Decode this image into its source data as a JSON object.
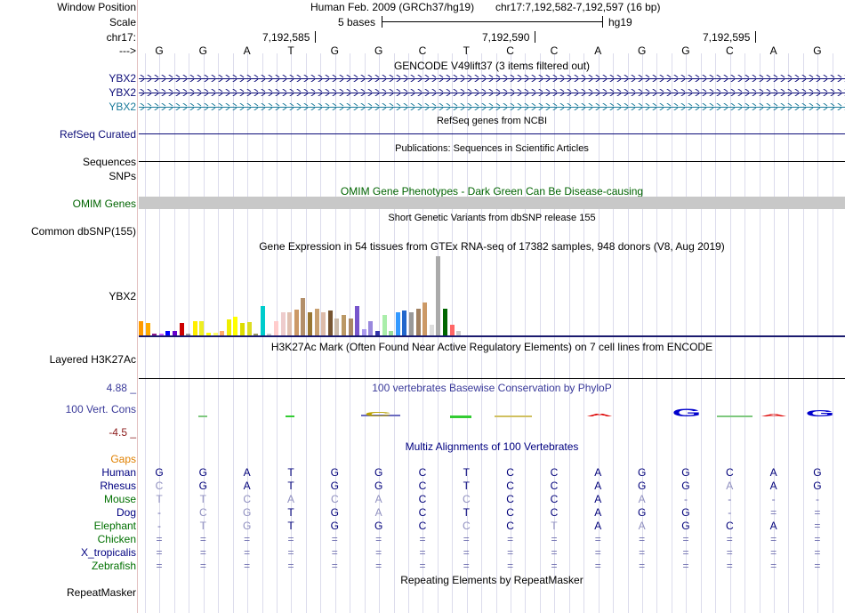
{
  "labels": {
    "window_position": "Window Position",
    "scale": "Scale",
    "chrom": "chr17:",
    "strand_arrow": "--->",
    "ybx2_1": "YBX2",
    "ybx2_2": "YBX2",
    "ybx2_3": "YBX2",
    "refseq": "RefSeq Curated",
    "sequences": "Sequences",
    "snps": "SNPs",
    "omim": "OMIM Genes",
    "common_dbsnp": "Common dbSNP(155)",
    "gtex_gene": "YBX2",
    "h3k27ac": "Layered H3K27Ac",
    "vert_cons": "100 Vert. Cons",
    "cons_max": "4.88 _",
    "cons_min": "-4.5 _",
    "gaps": "Gaps",
    "repeatmasker": "RepeatMasker"
  },
  "header": {
    "assembly": "Human Feb. 2009 (GRCh37/hg19)",
    "position": "chr17:7,192,582-7,192,597 (16 bp)",
    "scale_text": "5 bases",
    "scale_db": "hg19",
    "coord_1": "7,192,585",
    "coord_2": "7,192,590",
    "coord_3": "7,192,595"
  },
  "bases": [
    "G",
    "G",
    "A",
    "T",
    "G",
    "G",
    "C",
    "T",
    "C",
    "C",
    "A",
    "G",
    "G",
    "C",
    "A",
    "G"
  ],
  "track_titles": {
    "gencode": "GENCODE V49lift37 (3 items filtered out)",
    "refseq": "RefSeq genes from NCBI",
    "publications": "Publications: Sequences in Scientific Articles",
    "omim": "OMIM Gene Phenotypes - Dark Green Can Be Disease-causing",
    "dbsnp": "Short Genetic Variants from dbSNP release 155",
    "gtex": "Gene Expression in 54 tissues from GTEx RNA-seq of 17382 samples, 948 donors (V8, Aug 2019)",
    "h3k27ac": "H3K27Ac Mark (Often Found Near Active Regulatory Elements) on 7 cell lines from ENCODE",
    "phylop": "100 vertebrates Basewise Conservation by PhyloP",
    "multiz": "Multiz Alignments of 100 Vertebrates",
    "repeatmasker": "Repeating Elements by RepeatMasker"
  },
  "colors": {
    "gencode_dark": "#0c0c78",
    "gencode_light": "#1a7a9a",
    "omim_bar": "#c8c8c8",
    "omim_title": "#006400",
    "phylop_title": "#3a3a9a",
    "gaps": "#e08000",
    "green_species": "#007000",
    "blue_species": "#000080"
  },
  "gtex_values": [
    14,
    12,
    2,
    2,
    4,
    4,
    12,
    2,
    14,
    14,
    3,
    3,
    4,
    15,
    18,
    12,
    13,
    2,
    28,
    2,
    14,
    22,
    22,
    25,
    36,
    22,
    26,
    22,
    24,
    16,
    20,
    16,
    28,
    6,
    14,
    4,
    20,
    4,
    22,
    24,
    22,
    26,
    32,
    10,
    76,
    26,
    10,
    4
  ],
  "gtex_colors": [
    "#ff9900",
    "#ffaa00",
    "#8b1a8b",
    "#cc66ff",
    "#0000ff",
    "#6600cc",
    "#cc0000",
    "#999999",
    "#ffee00",
    "#eeee22",
    "#ffff00",
    "#ffff66",
    "#ffaa66",
    "#eeee00",
    "#ffff00",
    "#dddd00",
    "#dddd22",
    "#999966",
    "#00cccc",
    "#cccccc",
    "#ffcccc",
    "#eecccc",
    "#e0c0b0",
    "#cc9966",
    "#b38f6a",
    "#997733",
    "#c8a070",
    "#ddbbaa",
    "#775533",
    "#ccbbaa",
    "#bb9966",
    "#aa8866",
    "#7755cc",
    "#aa99ee",
    "#9988dd",
    "#3333aa",
    "#aaeeaa",
    "#99dd99",
    "#3399ff",
    "#2266cc",
    "#999999",
    "#a08060",
    "#cc9966",
    "#dddddd",
    "#aaaaaa",
    "#006600",
    "#ff6666",
    "#cccccc"
  ],
  "phylop_letters": [
    {
      "base": "C",
      "value": 2.1,
      "color": "#b8a000"
    },
    {
      "base": "A",
      "value": 1.2,
      "color": "#dd0000"
    },
    {
      "base": "G",
      "value": 3.4,
      "color": "#0000cc"
    },
    {
      "base": "A",
      "value": 1.1,
      "color": "#dd0000"
    },
    {
      "base": "G",
      "value": 2.9,
      "color": "#0000cc"
    }
  ],
  "species": [
    {
      "name": "Human",
      "color": "#000080",
      "bases": [
        "G",
        "G",
        "A",
        "T",
        "G",
        "G",
        "C",
        "T",
        "C",
        "C",
        "A",
        "G",
        "G",
        "C",
        "A",
        "G"
      ]
    },
    {
      "name": "Rhesus",
      "color": "#000080",
      "bases": [
        "C",
        "G",
        "A",
        "T",
        "G",
        "G",
        "C",
        "T",
        "C",
        "C",
        "A",
        "G",
        "G",
        "A",
        "A",
        "G"
      ]
    },
    {
      "name": "Mouse",
      "color": "#007000",
      "bases": [
        "T",
        "T",
        "C",
        "A",
        "C",
        "A",
        "C",
        "C",
        "C",
        "C",
        "A",
        "A",
        "-",
        "-",
        "-",
        "-"
      ]
    },
    {
      "name": "Dog",
      "color": "#000080",
      "bases": [
        "-",
        "C",
        "G",
        "T",
        "G",
        "A",
        "C",
        "T",
        "C",
        "C",
        "A",
        "G",
        "G",
        "-",
        "=",
        "="
      ]
    },
    {
      "name": "Elephant",
      "color": "#007000",
      "bases": [
        "-",
        "T",
        "G",
        "T",
        "G",
        "G",
        "C",
        "C",
        "C",
        "T",
        "A",
        "A",
        "G",
        "C",
        "A",
        "="
      ]
    },
    {
      "name": "Chicken",
      "color": "#007000",
      "bases": [
        "=",
        "=",
        "=",
        "=",
        "=",
        "=",
        "=",
        "=",
        "=",
        "=",
        "=",
        "=",
        "=",
        "=",
        "=",
        "="
      ]
    },
    {
      "name": "X_tropicalis",
      "color": "#000080",
      "bases": [
        "=",
        "=",
        "=",
        "=",
        "=",
        "=",
        "=",
        "=",
        "=",
        "=",
        "=",
        "=",
        "=",
        "=",
        "=",
        "="
      ]
    },
    {
      "name": "Zebrafish",
      "color": "#007000",
      "bases": [
        "=",
        "=",
        "=",
        "=",
        "=",
        "=",
        "=",
        "=",
        "=",
        "=",
        "=",
        "=",
        "=",
        "=",
        "=",
        "="
      ]
    }
  ]
}
